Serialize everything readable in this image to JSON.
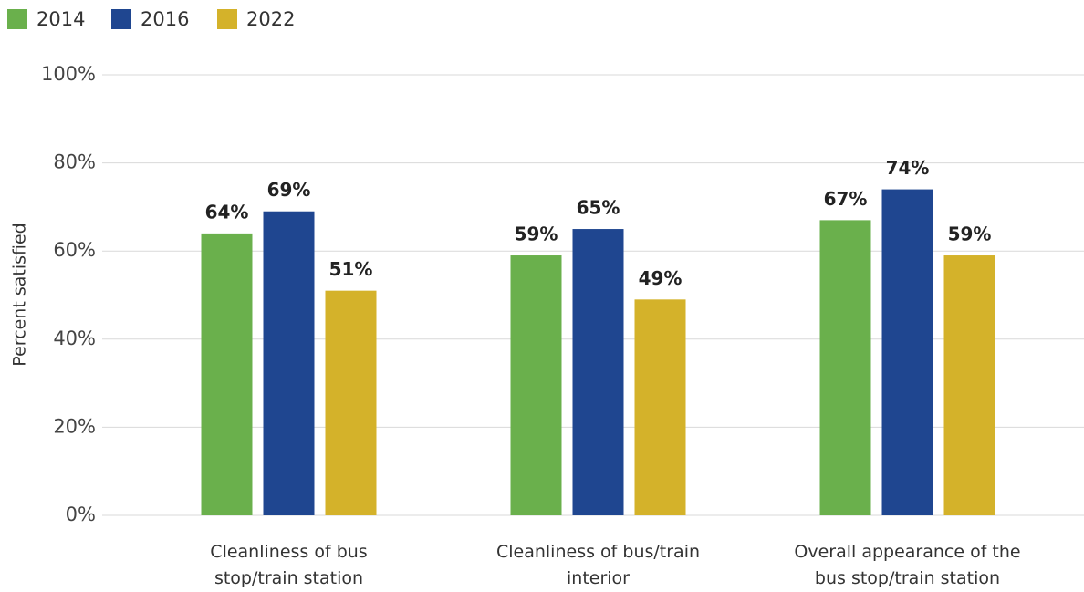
{
  "chart_data": {
    "type": "bar",
    "y_label": "Percent satisfied",
    "categories": [
      "Cleanliness of bus\nstop/train station",
      "Cleanliness of bus/train\ninterior",
      "Overall appearance of the\nbus stop/train station"
    ],
    "series": [
      {
        "name": "2014",
        "color": "#6ab04c",
        "values": [
          64,
          59,
          67
        ],
        "value_labels": [
          "64%",
          "59%",
          "67%"
        ]
      },
      {
        "name": "2016",
        "color": "#1f4690",
        "values": [
          69,
          65,
          74
        ],
        "value_labels": [
          "69%",
          "65%",
          "74%"
        ]
      },
      {
        "name": "2022",
        "color": "#d4b22a",
        "values": [
          51,
          49,
          59
        ],
        "value_labels": [
          "51%",
          "49%",
          "59%"
        ]
      }
    ],
    "ylim": [
      0,
      100
    ],
    "yticks": [
      {
        "value": 0,
        "label": "0%"
      },
      {
        "value": 20,
        "label": "20%"
      },
      {
        "value": 40,
        "label": "40%"
      },
      {
        "value": 60,
        "label": "60%"
      },
      {
        "value": 80,
        "label": "80%"
      },
      {
        "value": 100,
        "label": "100%"
      }
    ],
    "grid": true,
    "legend": "top-left"
  }
}
